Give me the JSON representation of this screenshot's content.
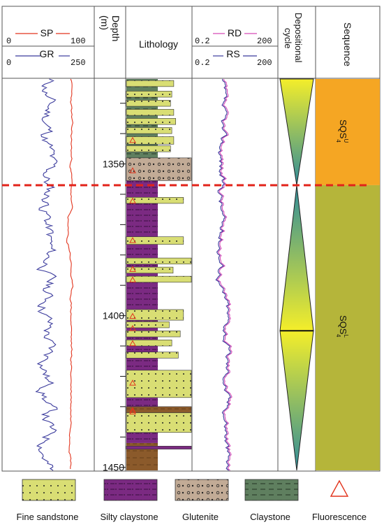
{
  "headers": {
    "sp": {
      "label": "SP",
      "min": "0",
      "max": "100"
    },
    "gr": {
      "label": "GR",
      "min": "0",
      "max": "250"
    },
    "depth": "Depth",
    "depth_unit": "(m)",
    "lithology": "Lithology",
    "rd": {
      "label": "RD",
      "min": "0.2",
      "max": "200"
    },
    "rs": {
      "label": "RS",
      "min": "0.2",
      "max": "200"
    },
    "cycle": [
      "Depositional",
      "cycle"
    ],
    "sequence": "Sequence"
  },
  "depth": {
    "top": 1322,
    "bottom": 1451,
    "ticks": [
      1350,
      1400,
      1450
    ]
  },
  "boundary_depth": 1357,
  "sequences": [
    {
      "base": "SQS",
      "sub": "4",
      "sup": "U",
      "top": 1322,
      "bottom": 1357,
      "color": "#f5a623"
    },
    {
      "base": "SQS",
      "sub": "4",
      "sup": "L",
      "top": 1357,
      "bottom": 1451,
      "color": "#b5b53a"
    }
  ],
  "cycles": [
    {
      "top": 1322,
      "bottom": 1357,
      "pinch": "bottom"
    },
    {
      "top": 1357,
      "bottom": 1405,
      "pinch": "top"
    },
    {
      "top": 1405,
      "bottom": 1451,
      "pinch": "bottom"
    }
  ],
  "lithology": {
    "colors": {
      "fine_sandstone": "#d9de74",
      "silty_claystone": "#7b2a82",
      "glutenite": "#c2ab96",
      "claystone": "#5f7f5f",
      "brown": "#8b5a2b"
    },
    "columns": [
      {
        "top": 1322,
        "bottom": 1350,
        "type": "claystone"
      },
      {
        "top": 1350,
        "bottom": 1442,
        "type": "silty_claystone"
      },
      {
        "top": 1442,
        "bottom": 1451,
        "type": "brown"
      }
    ],
    "beds": [
      {
        "top": 1322.5,
        "bottom": 1324.5,
        "type": "fine_sandstone",
        "width": 0.73
      },
      {
        "top": 1326,
        "bottom": 1328,
        "type": "fine_sandstone",
        "width": 0.7
      },
      {
        "top": 1329,
        "bottom": 1331,
        "type": "fine_sandstone",
        "width": 0.68
      },
      {
        "top": 1332,
        "bottom": 1334,
        "type": "fine_sandstone",
        "width": 0.73
      },
      {
        "top": 1335,
        "bottom": 1337,
        "type": "fine_sandstone",
        "width": 0.76
      },
      {
        "top": 1338,
        "bottom": 1340,
        "type": "fine_sandstone",
        "width": 0.7
      },
      {
        "top": 1341,
        "bottom": 1343.5,
        "type": "fine_sandstone",
        "width": 0.73
      },
      {
        "top": 1344,
        "bottom": 1346,
        "type": "fine_sandstone",
        "width": 0.68
      },
      {
        "top": 1348,
        "bottom": 1355.5,
        "type": "glutenite",
        "width": 1.0
      },
      {
        "top": 1361,
        "bottom": 1363,
        "type": "fine_sandstone",
        "width": 0.88
      },
      {
        "top": 1374,
        "bottom": 1376.5,
        "type": "fine_sandstone",
        "width": 0.88
      },
      {
        "top": 1381,
        "bottom": 1383,
        "type": "fine_sandstone",
        "width": 1.0
      },
      {
        "top": 1384,
        "bottom": 1386,
        "type": "fine_sandstone",
        "width": 0.72
      },
      {
        "top": 1387,
        "bottom": 1389,
        "type": "fine_sandstone",
        "width": 1.0
      },
      {
        "top": 1398,
        "bottom": 1401.5,
        "type": "fine_sandstone",
        "width": 0.88
      },
      {
        "top": 1402,
        "bottom": 1404,
        "type": "fine_sandstone",
        "width": 0.66
      },
      {
        "top": 1405,
        "bottom": 1407,
        "type": "fine_sandstone",
        "width": 0.83
      },
      {
        "top": 1408,
        "bottom": 1410,
        "type": "fine_sandstone",
        "width": 0.7
      },
      {
        "top": 1412,
        "bottom": 1414,
        "type": "fine_sandstone",
        "width": 0.8
      },
      {
        "top": 1418,
        "bottom": 1427,
        "type": "fine_sandstone",
        "width": 1.0
      },
      {
        "top": 1430,
        "bottom": 1432,
        "type": "brown",
        "width": 1.0
      },
      {
        "top": 1432,
        "bottom": 1438.5,
        "type": "fine_sandstone",
        "width": 1.0
      },
      {
        "top": 1443,
        "bottom": 1444,
        "type": "silty_claystone",
        "width": 1.0
      }
    ],
    "fluorescence": [
      1342,
      1352,
      1362,
      1375,
      1384.5,
      1388,
      1400,
      1404,
      1409,
      1422,
      1431,
      1431.5
    ]
  },
  "curves": {
    "gr_color": "#3a3a9c",
    "sp_color": "#e2341d",
    "rd_color": "#d64bb8",
    "rs_color": "#3a3a9c"
  },
  "legend": [
    {
      "label": "Fine sandstone",
      "pattern": "fine_sandstone"
    },
    {
      "label": "Silty claystone",
      "pattern": "silty_claystone"
    },
    {
      "label": "Glutenite",
      "pattern": "glutenite"
    },
    {
      "label": "Claystone",
      "pattern": "claystone"
    },
    {
      "label": "Fluorescence",
      "pattern": "fluorescence"
    }
  ]
}
